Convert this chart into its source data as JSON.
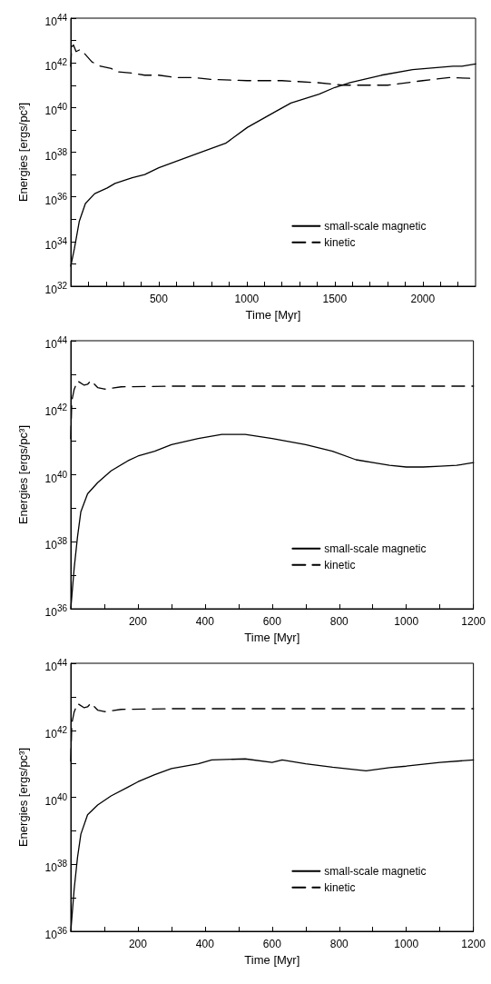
{
  "chart_data": [
    {
      "type": "line",
      "xlabel": "Time [Myr]",
      "ylabel": "Energies [ergs/pc³]",
      "log": "y",
      "grid": false,
      "legend": "bottom right",
      "xlim": [
        0,
        2300
      ],
      "ylim": [
        1e+32,
        1e+44
      ],
      "xticks": [
        {
          "value": 100,
          "label": null
        },
        {
          "value": 200,
          "label": null
        },
        {
          "value": 300,
          "label": null
        },
        {
          "value": 400,
          "label": null
        },
        500,
        {
          "value": 600,
          "label": null
        },
        {
          "value": 700,
          "label": null
        },
        {
          "value": 800,
          "label": null
        },
        {
          "value": 900,
          "label": null
        },
        1000,
        {
          "value": 1100,
          "label": null
        },
        {
          "value": 1200,
          "label": null
        },
        {
          "value": 1300,
          "label": null
        },
        {
          "value": 1400,
          "label": null
        },
        1500,
        {
          "value": 1600,
          "label": null
        },
        {
          "value": 1700,
          "label": null
        },
        {
          "value": 1800,
          "label": null
        },
        {
          "value": 1900,
          "label": null
        },
        2000,
        {
          "value": 2100,
          "label": null
        },
        {
          "value": 2200,
          "label": null
        }
      ],
      "yticks": [
        {
          "value": 1e+32,
          "label": "10$^{32}$"
        },
        {
          "value": 1e+33,
          "label": null
        },
        {
          "value": 1e+34,
          "label": "10$^{34}$"
        },
        {
          "value": 1e+35,
          "label": null
        },
        {
          "value": 1e+36,
          "label": "10$^{36}$"
        },
        {
          "value": 1e+37,
          "label": null
        },
        {
          "value": 1e+38,
          "label": "10$^{38}$"
        },
        {
          "value": 1e+39,
          "label": null
        },
        {
          "value": 1e+40,
          "label": "10$^{40}$"
        },
        {
          "value": 1e+41,
          "label": null
        },
        {
          "value": 1e+42,
          "label": "10$^{42}$"
        },
        {
          "value": 1e+43,
          "label": null
        },
        {
          "value": 1e+44,
          "label": "10$^{44}$"
        }
      ],
      "series": [
        {
          "name": "small-scale magnetic",
          "color": "#000000",
          "line_style": "solid",
          "x": [
            0,
            21,
            48,
            83,
            136,
            207,
            251,
            349,
            420,
            500,
            703,
            880,
            1004,
            1181,
            1251,
            1411,
            1500,
            1588,
            1765,
            1942,
            2172,
            2223,
            2300
          ],
          "values": [
            7.9e+32,
            5e+33,
            7.9e+34,
            5e+35,
            1.4e+36,
            2.5e+36,
            4e+36,
            7.1e+36,
            1e+37,
            2e+37,
            7.9e+37,
            2.5e+38,
            1.3e+39,
            7.9e+39,
            1.6e+40,
            4e+40,
            7.9e+40,
            1.3e+41,
            2.8e+41,
            5e+41,
            7.1e+41,
            7.1e+41,
            8.9e+41
          ]
        },
        {
          "name": "kinetic",
          "color": "#000000",
          "line_style": "dashed",
          "x": [
            0,
            5,
            15,
            30,
            55,
            80,
            120,
            170,
            230,
            260,
            350,
            420,
            500,
            600,
            700,
            800,
            1000,
            1200,
            1400,
            1550,
            1800,
            2000,
            2150,
            2300
          ],
          "values": [
            7e+41,
            5e+42,
            6.3e+42,
            3.2e+42,
            4e+42,
            2.5e+42,
            1.1e+42,
            7e+41,
            5.6e+41,
            4e+41,
            3.5e+41,
            2.8e+41,
            2.8e+41,
            2.2e+41,
            2.2e+41,
            1.8e+41,
            1.6e+41,
            1.6e+41,
            1.3e+41,
            1e+41,
            1e+41,
            1.6e+41,
            2.2e+41,
            2e+41
          ]
        }
      ]
    },
    {
      "type": "line",
      "xlabel": "Time [Myr]",
      "ylabel": "Energies [ergs/pc³]",
      "log": "y",
      "grid": false,
      "legend": "bottom right",
      "xlim": [
        0,
        1200
      ],
      "ylim": [
        1e+36,
        1e+44
      ],
      "xticks": [
        {
          "value": 100,
          "label": null
        },
        200,
        {
          "value": 300,
          "label": null
        },
        400,
        {
          "value": 500,
          "label": null
        },
        600,
        {
          "value": 700,
          "label": null
        },
        800,
        {
          "value": 900,
          "label": null
        },
        1000,
        {
          "value": 1100,
          "label": null
        },
        1200
      ],
      "yticks": [
        {
          "value": 1e+36,
          "label": "10$^{36}$"
        },
        {
          "value": 1e+37,
          "label": null
        },
        {
          "value": 1e+38,
          "label": "10$^{38}$"
        },
        {
          "value": 1e+39,
          "label": null
        },
        {
          "value": 1e+40,
          "label": "10$^{40}$"
        },
        {
          "value": 1e+41,
          "label": null
        },
        {
          "value": 1e+42,
          "label": "10$^{42}$"
        },
        {
          "value": 1e+43,
          "label": null
        },
        {
          "value": 1e+44,
          "label": "10$^{44}$"
        }
      ],
      "series": [
        {
          "name": "small-scale magnetic",
          "color": "#000000",
          "line_style": "solid",
          "x": [
            0,
            10,
            20,
            30,
            50,
            80,
            120,
            170,
            200,
            250,
            300,
            380,
            450,
            520,
            600,
            700,
            780,
            850,
            950,
            1000,
            1050,
            1100,
            1150,
            1200
          ],
          "values": [
            1e+36,
            1.6e+37,
            1.4e+38,
            7.9e+38,
            2.7e+39,
            5.8e+39,
            1.3e+40,
            2.6e+40,
            3.6e+40,
            5e+40,
            7.9e+40,
            1.2e+41,
            1.6e+41,
            1.6e+41,
            1.2e+41,
            7.9e+40,
            5e+40,
            2.8e+40,
            1.9e+40,
            1.7e+40,
            1.7e+40,
            1.8e+40,
            1.9e+40,
            2.3e+40
          ]
        },
        {
          "name": "kinetic",
          "color": "#000000",
          "line_style": "dashed",
          "x": [
            0,
            3,
            10,
            20,
            40,
            50,
            60,
            80,
            100,
            150,
            300,
            500,
            750,
            1000,
            1200
          ],
          "values": [
            1.2e+41,
            1.6e+42,
            3.5e+42,
            6.3e+42,
            4.7e+42,
            5e+42,
            6.5e+42,
            4e+42,
            3.6e+42,
            4.2e+42,
            4.4e+42,
            4.4e+42,
            4.4e+42,
            4.4e+42,
            4.4e+42
          ]
        }
      ]
    },
    {
      "type": "line",
      "xlabel": "Time [Myr]",
      "ylabel": "Energies [ergs/pc³]",
      "log": "y",
      "grid": false,
      "legend": "bottom right",
      "xlim": [
        0,
        1200
      ],
      "ylim": [
        1e+36,
        1e+44
      ],
      "xticks": [
        {
          "value": 100,
          "label": null
        },
        200,
        {
          "value": 300,
          "label": null
        },
        400,
        {
          "value": 500,
          "label": null
        },
        600,
        {
          "value": 700,
          "label": null
        },
        800,
        {
          "value": 900,
          "label": null
        },
        1000,
        {
          "value": 1100,
          "label": null
        },
        1200
      ],
      "yticks": [
        {
          "value": 1e+36,
          "label": "10$^{36}$"
        },
        {
          "value": 1e+37,
          "label": null
        },
        {
          "value": 1e+38,
          "label": "10$^{38}$"
        },
        {
          "value": 1e+39,
          "label": null
        },
        {
          "value": 1e+40,
          "label": "10$^{40}$"
        },
        {
          "value": 1e+41,
          "label": null
        },
        {
          "value": 1e+42,
          "label": "10$^{42}$"
        },
        {
          "value": 1e+43,
          "label": null
        },
        {
          "value": 1e+44,
          "label": "10$^{44}$"
        }
      ],
      "series": [
        {
          "name": "small-scale magnetic",
          "color": "#000000",
          "line_style": "solid",
          "x": [
            0,
            10,
            20,
            30,
            50,
            80,
            120,
            170,
            200,
            250,
            300,
            380,
            420,
            520,
            600,
            630,
            700,
            780,
            880,
            950,
            1000,
            1100,
            1200
          ],
          "values": [
            1e+36,
            1.8e+37,
            1.6e+38,
            7.9e+38,
            3e+39,
            5.9e+39,
            1.1e+40,
            2e+40,
            2.9e+40,
            4.7e+40,
            7.2e+40,
            1e+41,
            1.3e+41,
            1.4e+41,
            1.1e+41,
            1.3e+41,
            1e+41,
            7.9e+40,
            6.2e+40,
            7.7e+40,
            8.5e+40,
            1.1e+41,
            1.3e+41
          ]
        },
        {
          "name": "kinetic",
          "color": "#000000",
          "line_style": "dashed",
          "x": [
            0,
            3,
            10,
            20,
            40,
            50,
            60,
            80,
            100,
            150,
            300,
            500,
            750,
            1000,
            1200
          ],
          "values": [
            1.2e+41,
            1.6e+42,
            3.5e+42,
            6.3e+42,
            4.7e+42,
            5e+42,
            6.5e+42,
            4e+42,
            3.6e+42,
            4.2e+42,
            4.4e+42,
            4.4e+42,
            4.4e+42,
            4.4e+42,
            4.4e+42
          ]
        }
      ]
    }
  ]
}
